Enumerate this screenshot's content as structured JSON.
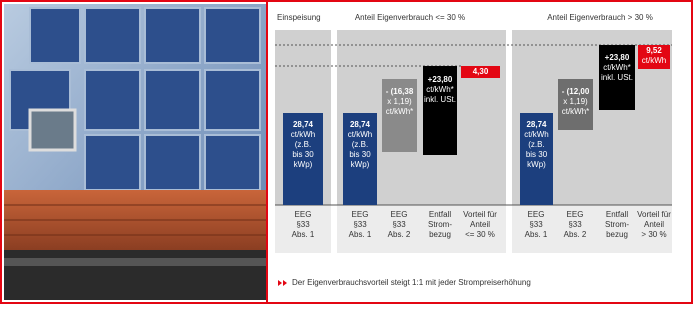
{
  "header": {
    "feed_in": "Einspeisung",
    "own_use_low": "Anteil Eigenverbrauch <= 30 %",
    "own_use_high": "Anteil Eigenverbrauch > 30 %"
  },
  "boxes": [
    {
      "lines": [
        "28,74",
        "ct/kWh",
        "(z.B.",
        "bis 30",
        "kWp)"
      ]
    },
    {
      "lines": [
        "28,74",
        "ct/kWh",
        "(z.B.",
        "bis 30",
        "kWp)"
      ]
    },
    {
      "lines": [
        "- (16,38",
        "x 1,19)",
        "ct/kWh*"
      ]
    },
    {
      "lines": [
        "+23,80",
        "ct/kWh*",
        "inkl. USt."
      ]
    },
    {
      "lines": [
        "4,30"
      ]
    },
    {
      "lines": [
        "28,74",
        "ct/kWh",
        "(z.B.",
        "bis 30",
        "kWp)"
      ]
    },
    {
      "lines": [
        "- (12,00",
        "x 1,19)",
        "ct/kWh*"
      ]
    },
    {
      "lines": [
        "+23,80",
        "ct/kWh*",
        "inkl. USt."
      ]
    },
    {
      "lines": [
        "9,52",
        "ct/kWh"
      ]
    }
  ],
  "labels": [
    {
      "lines": [
        "EEG",
        "§33",
        "Abs. 1"
      ]
    },
    {
      "lines": [
        "EEG",
        "§33",
        "Abs. 1"
      ]
    },
    {
      "lines": [
        "EEG",
        "§33",
        "Abs. 2"
      ]
    },
    {
      "lines": [
        "Entfall",
        "Strom-",
        "bezug"
      ]
    },
    {
      "lines": [
        "Vorteil für",
        "Anteil",
        "<= 30 %"
      ]
    },
    {
      "lines": [
        "EEG",
        "§33",
        "Abs. 1"
      ]
    },
    {
      "lines": [
        "EEG",
        "§33",
        "Abs. 2"
      ]
    },
    {
      "lines": [
        "Entfall",
        "Strom-",
        "bezug"
      ]
    },
    {
      "lines": [
        "Vorteil für",
        "Anteil",
        "> 30 %"
      ]
    }
  ],
  "footer": "Der Eigenverbrauchsvorteil steigt 1:1 mit jeder Strompreiserhöhung"
}
